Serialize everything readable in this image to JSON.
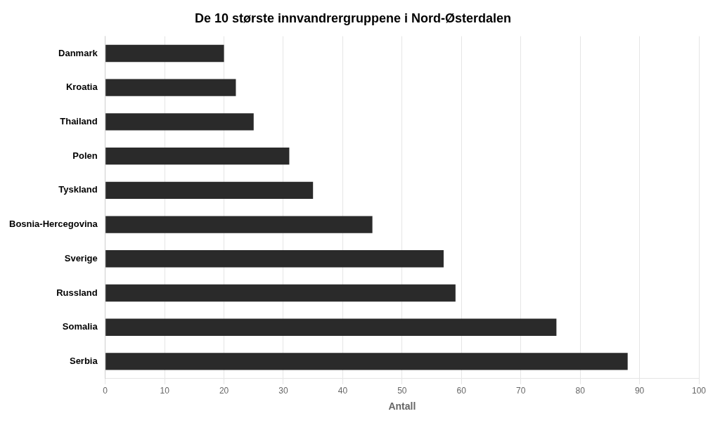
{
  "chart_data": {
    "type": "bar",
    "orientation": "horizontal",
    "title": "De 10 største innvandrergruppene i Nord-Østerdalen",
    "xlabel": "Antall",
    "categories": [
      "Danmark",
      "Kroatia",
      "Thailand",
      "Polen",
      "Tyskland",
      "Bosnia-Hercegovina",
      "Sverige",
      "Russland",
      "Somalia",
      "Serbia"
    ],
    "values": [
      20,
      22,
      25,
      31,
      35,
      45,
      57,
      59,
      76,
      88
    ],
    "color": "#2a2a2a",
    "xlim": [
      0,
      100
    ],
    "xticks": [
      0,
      10,
      20,
      30,
      40,
      50,
      60,
      70,
      80,
      90,
      100
    ],
    "grid": true
  }
}
